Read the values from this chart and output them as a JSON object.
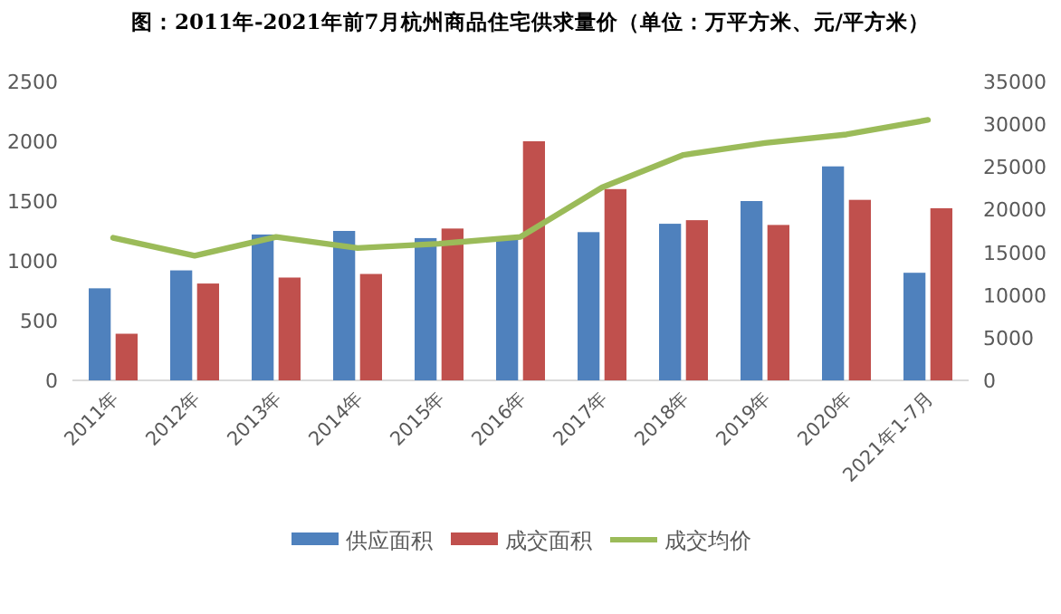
{
  "chart_data": {
    "type": "bar",
    "title": "图：2011年-2021年前7月杭州商品住宅供求量价（单位：万平方米、元/平方米）",
    "categories": [
      "2011年",
      "2012年",
      "2013年",
      "2014年",
      "2015年",
      "2016年",
      "2017年",
      "2018年",
      "2019年",
      "2020年",
      "2021年1-7月"
    ],
    "series": [
      {
        "name": "供应面积",
        "color": "#4f81bd",
        "values": [
          770,
          920,
          1220,
          1250,
          1190,
          1200,
          1240,
          1310,
          1500,
          1790,
          900
        ]
      },
      {
        "name": "成交面积",
        "color": "#c0504d",
        "values": [
          390,
          810,
          860,
          890,
          1270,
          2000,
          1600,
          1340,
          1300,
          1510,
          1440
        ]
      },
      {
        "name": "成交均价",
        "color": "#9bbb59",
        "type": "line",
        "axis": "y2",
        "values": [
          16700,
          14600,
          16800,
          15500,
          16000,
          16800,
          22600,
          26400,
          27800,
          28800,
          30500
        ]
      }
    ],
    "ylim": [
      0,
      2500
    ],
    "yticks": [
      0,
      500,
      1000,
      1500,
      2000,
      2500
    ],
    "y2lim": [
      0,
      35000
    ],
    "y2ticks": [
      0,
      5000,
      10000,
      15000,
      20000,
      25000,
      30000,
      35000
    ],
    "legend": "bottom",
    "marker": "none"
  }
}
